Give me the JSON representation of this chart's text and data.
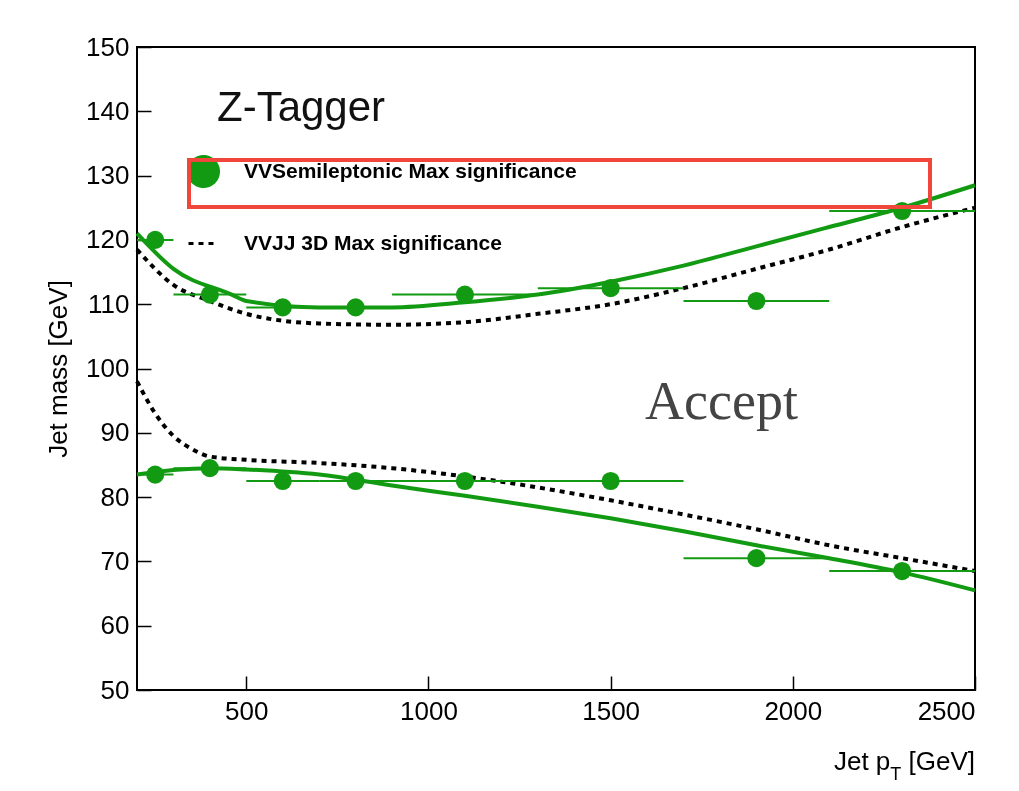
{
  "chart_data": {
    "type": "line",
    "title": "Z-Tagger",
    "xlabel": "Jet p$_{T}$ [GeV]",
    "ylabel": "Jet mass [GeV]",
    "annotations": [
      "Accept"
    ],
    "xlim": [
      200,
      2500
    ],
    "xticks": [
      500,
      1000,
      1500,
      2000,
      2500
    ],
    "ylim": [
      50,
      150
    ],
    "yticks": [
      50,
      60,
      70,
      80,
      90,
      100,
      110,
      120,
      130,
      140,
      150
    ],
    "grid": false,
    "legend": "top left",
    "series": [
      {
        "name": "VVSemileptonic Max significance",
        "type": "scatter",
        "marker": "circle",
        "color": "#129b12",
        "x": [
          250,
          400,
          600,
          800,
          1100,
          1500,
          1900,
          2300,
          250,
          400,
          600,
          800,
          1100,
          1500,
          1900,
          2300
        ],
        "values": [
          120,
          111.5,
          109.5,
          109.5,
          111.5,
          112.5,
          110.5,
          124.5,
          83.5,
          84.5,
          82.5,
          82.5,
          82.5,
          82.5,
          70.5,
          68.5
        ],
        "xerrors": [
          [
            200,
            300
          ],
          [
            300,
            500
          ],
          [
            500,
            700
          ],
          [
            700,
            900
          ],
          [
            900,
            1300
          ],
          [
            1300,
            1700
          ],
          [
            1700,
            2100
          ],
          [
            2100,
            2500
          ],
          [
            200,
            300
          ],
          [
            300,
            500
          ],
          [
            500,
            700
          ],
          [
            700,
            900
          ],
          [
            900,
            1300
          ],
          [
            1300,
            1700
          ],
          [
            1700,
            2100
          ],
          [
            2100,
            2500
          ]
        ]
      },
      {
        "name": "VVJJ 3D Max significance",
        "color": "#000000",
        "line_style": "dotted",
        "x": [
          200,
          300,
          400,
          500,
          700,
          900,
          1100,
          1300,
          1500,
          1700,
          1900,
          2100,
          2300,
          2500
        ],
        "values": [
          118.5,
          113,
          110.5,
          108.5,
          107,
          106.8,
          107.2,
          108.5,
          110,
          112.5,
          115.5,
          118.5,
          122,
          125
        ]
      },
      {
        "color": "#000000",
        "line_style": "dotted",
        "x": [
          200,
          250,
          300,
          350,
          400,
          500,
          700,
          900,
          1000,
          1200,
          1300,
          1500,
          1700,
          1900,
          2100,
          2300,
          2500
        ],
        "values": [
          98,
          93,
          89.5,
          87.5,
          86.3,
          85.8,
          85.3,
          84.5,
          83.9,
          82.4,
          81.5,
          79.5,
          77.3,
          75,
          72.5,
          70.5,
          68.5
        ]
      },
      {
        "color": "#129b12",
        "line_style": "solid",
        "x": [
          200,
          300,
          460,
          500,
          700,
          900,
          1100,
          1300,
          1500,
          1700,
          1900,
          2100,
          2300,
          2500
        ],
        "values": [
          121,
          115.5,
          111.5,
          110.5,
          109.5,
          109.5,
          110.3,
          111.5,
          113.5,
          116,
          119,
          122,
          125,
          128.5
        ]
      },
      {
        "color": "#129b12",
        "line_style": "solid",
        "x": [
          200,
          300,
          400,
          500,
          700,
          900,
          1100,
          1300,
          1500,
          1700,
          1900,
          2100,
          2300,
          2500
        ],
        "values": [
          83.5,
          84.2,
          84.5,
          84.3,
          83.5,
          81.8,
          80.2,
          78.5,
          76.7,
          74.7,
          72.5,
          70.5,
          68.3,
          65.5
        ]
      }
    ]
  }
}
